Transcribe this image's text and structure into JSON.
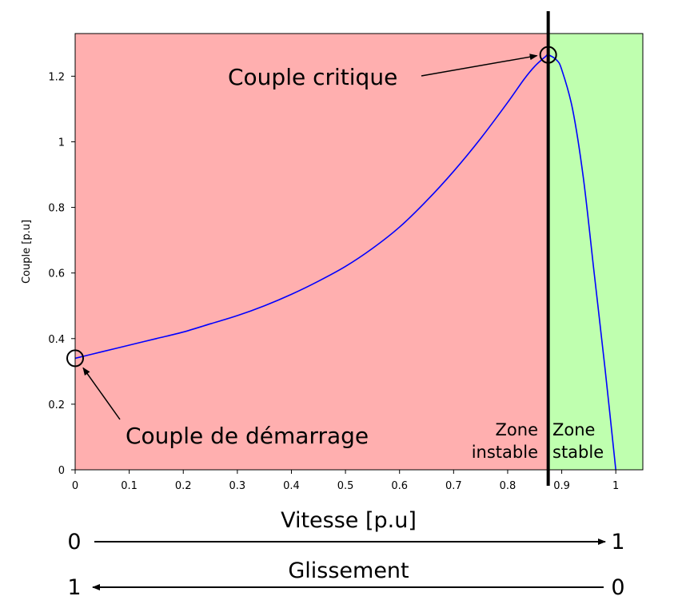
{
  "chart_data": {
    "type": "line",
    "xlabel": "Vitesse [p.u]",
    "ylabel": "Couple [p.u]",
    "xlim": [
      0,
      1.05
    ],
    "ylim": [
      0,
      1.33
    ],
    "xticks": [
      0,
      0.1,
      0.2,
      0.3,
      0.4,
      0.5,
      0.6,
      0.7,
      0.8,
      0.9,
      1
    ],
    "xtick_labels": [
      "0",
      "0.1",
      "0.2",
      "0.3",
      "0.4",
      "0.5",
      "0.6",
      "0.7",
      "0.8",
      "0.9",
      "1"
    ],
    "yticks": [
      0,
      0.2,
      0.4,
      0.6,
      0.8,
      1,
      1.2
    ],
    "ytick_labels": [
      "0",
      "0.2",
      "0.4",
      "0.6",
      "0.8",
      "1",
      "1.2"
    ],
    "series": [
      {
        "color": "#0000ff",
        "x": [
          0,
          0.05,
          0.1,
          0.15,
          0.2,
          0.25,
          0.3,
          0.35,
          0.4,
          0.45,
          0.5,
          0.55,
          0.6,
          0.65,
          0.7,
          0.75,
          0.8,
          0.83,
          0.85,
          0.87,
          0.875,
          0.89,
          0.9,
          0.92,
          0.94,
          0.96,
          0.98,
          1.0
        ],
        "y": [
          0.34,
          0.36,
          0.38,
          0.4,
          0.42,
          0.445,
          0.47,
          0.5,
          0.535,
          0.575,
          0.62,
          0.675,
          0.74,
          0.82,
          0.91,
          1.01,
          1.12,
          1.19,
          1.23,
          1.26,
          1.265,
          1.25,
          1.22,
          1.1,
          0.89,
          0.6,
          0.31,
          0.0
        ]
      }
    ],
    "regions": [
      {
        "name": "Zone instable",
        "x_range": [
          0,
          0.875
        ],
        "color": "#ffafaf"
      },
      {
        "name": "Zone stable",
        "x_range": [
          0.875,
          1.05
        ],
        "color": "#bfffaf"
      }
    ],
    "vertical_line": {
      "x": 0.875,
      "color": "#000000"
    },
    "annotations": [
      {
        "text": "Couple critique",
        "x": 0.875,
        "y": 1.265
      },
      {
        "text": "Couple de démarrage",
        "x": 0,
        "y": 0.34
      }
    ],
    "zone_labels": {
      "instable": [
        "Zone",
        "instable"
      ],
      "stable": [
        "Zone",
        "stable"
      ]
    },
    "speed_scale": {
      "left": "0",
      "right": "1"
    },
    "slip_title": "Glissement",
    "slip_scale": {
      "left": "1",
      "right": "0"
    },
    "grid": false
  }
}
